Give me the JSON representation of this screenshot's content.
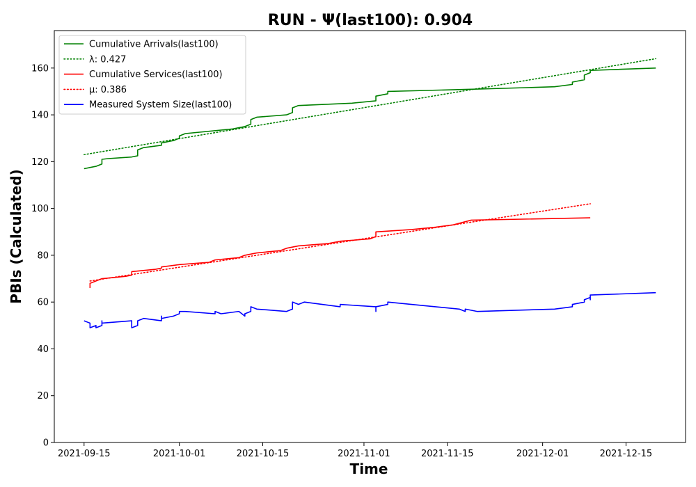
{
  "chart_data": {
    "type": "line",
    "title": "RUN -  Ψ(last100): 0.904",
    "xlabel": "Time",
    "ylabel": "PBIs (Calculated)",
    "xlim": [
      "2021-09-10",
      "2021-12-25"
    ],
    "ylim": [
      0,
      176
    ],
    "x_ticks": [
      "2021-09-15",
      "2021-10-01",
      "2021-10-15",
      "2021-11-01",
      "2021-11-15",
      "2021-12-01",
      "2021-12-15"
    ],
    "y_ticks": [
      0,
      20,
      40,
      60,
      80,
      100,
      120,
      140,
      160
    ],
    "grid": false,
    "legend_position": "top-left",
    "series": [
      {
        "name": "Cumulative Arrivals(last100)",
        "color": "#008000",
        "style": "solid",
        "points": [
          [
            "2021-09-15",
            117
          ],
          [
            "2021-09-17",
            118
          ],
          [
            "2021-09-18",
            119
          ],
          [
            "2021-09-18",
            121
          ],
          [
            "2021-09-19",
            121.3
          ],
          [
            "2021-09-23",
            122
          ],
          [
            "2021-09-24",
            122.5
          ],
          [
            "2021-09-24",
            125
          ],
          [
            "2021-09-25",
            126
          ],
          [
            "2021-09-28",
            127
          ],
          [
            "2021-09-28",
            128
          ],
          [
            "2021-09-30",
            129
          ],
          [
            "2021-10-01",
            130
          ],
          [
            "2021-10-01",
            131
          ],
          [
            "2021-10-02",
            132
          ],
          [
            "2021-10-10",
            134
          ],
          [
            "2021-10-11",
            134.5
          ],
          [
            "2021-10-12",
            135
          ],
          [
            "2021-10-13",
            136
          ],
          [
            "2021-10-13",
            138
          ],
          [
            "2021-10-14",
            139
          ],
          [
            "2021-10-19",
            140
          ],
          [
            "2021-10-20",
            141
          ],
          [
            "2021-10-20",
            143
          ],
          [
            "2021-10-21",
            144
          ],
          [
            "2021-10-30",
            145
          ],
          [
            "2021-11-03",
            146
          ],
          [
            "2021-11-03",
            148
          ],
          [
            "2021-11-05",
            149
          ],
          [
            "2021-11-05",
            150
          ],
          [
            "2021-11-20",
            151
          ],
          [
            "2021-12-03",
            152
          ],
          [
            "2021-12-06",
            153
          ],
          [
            "2021-12-06",
            154
          ],
          [
            "2021-12-08",
            155
          ],
          [
            "2021-12-08",
            157
          ],
          [
            "2021-12-09",
            158
          ],
          [
            "2021-12-09",
            159
          ],
          [
            "2021-12-20",
            160
          ]
        ]
      },
      {
        "name": "λ: 0.427",
        "color": "#008000",
        "style": "dotted",
        "points": [
          [
            "2021-09-15",
            123
          ],
          [
            "2021-12-20",
            164
          ]
        ]
      },
      {
        "name": "Cumulative Services(last100)",
        "color": "#ff0000",
        "style": "solid",
        "points": [
          [
            "2021-09-16",
            66
          ],
          [
            "2021-09-16",
            68
          ],
          [
            "2021-09-17",
            69
          ],
          [
            "2021-09-18",
            70
          ],
          [
            "2021-09-22",
            71
          ],
          [
            "2021-09-23",
            71.5
          ],
          [
            "2021-09-23",
            73
          ],
          [
            "2021-09-27",
            74
          ],
          [
            "2021-09-28",
            74.5
          ],
          [
            "2021-09-28",
            75
          ],
          [
            "2021-10-01",
            76
          ],
          [
            "2021-10-06",
            77
          ],
          [
            "2021-10-07",
            78
          ],
          [
            "2021-10-11",
            79
          ],
          [
            "2021-10-12",
            80
          ],
          [
            "2021-10-14",
            81
          ],
          [
            "2021-10-18",
            82
          ],
          [
            "2021-10-19",
            83
          ],
          [
            "2021-10-21",
            84
          ],
          [
            "2021-10-26",
            85
          ],
          [
            "2021-10-28",
            86
          ],
          [
            "2021-11-02",
            87
          ],
          [
            "2021-11-03",
            88
          ],
          [
            "2021-11-03",
            90
          ],
          [
            "2021-11-09",
            91
          ],
          [
            "2021-11-13",
            92
          ],
          [
            "2021-11-16",
            93
          ],
          [
            "2021-11-19",
            95
          ],
          [
            "2021-12-09",
            96
          ]
        ]
      },
      {
        "name": "μ: 0.386",
        "color": "#ff0000",
        "style": "dotted",
        "points": [
          [
            "2021-09-16",
            69
          ],
          [
            "2021-12-09",
            102
          ]
        ]
      },
      {
        "name": "Measured System Size(last100)",
        "color": "#0000ff",
        "style": "solid",
        "points": [
          [
            "2021-09-15",
            52
          ],
          [
            "2021-09-16",
            51
          ],
          [
            "2021-09-16",
            49
          ],
          [
            "2021-09-17",
            50
          ],
          [
            "2021-09-17",
            49
          ],
          [
            "2021-09-18",
            50
          ],
          [
            "2021-09-18",
            52
          ],
          [
            "2021-09-18",
            51
          ],
          [
            "2021-09-23",
            52
          ],
          [
            "2021-09-23",
            49
          ],
          [
            "2021-09-24",
            50
          ],
          [
            "2021-09-24",
            52
          ],
          [
            "2021-09-25",
            53
          ],
          [
            "2021-09-28",
            52
          ],
          [
            "2021-09-28",
            54
          ],
          [
            "2021-09-28",
            53
          ],
          [
            "2021-09-30",
            54
          ],
          [
            "2021-10-01",
            55
          ],
          [
            "2021-10-01",
            56
          ],
          [
            "2021-10-02",
            56
          ],
          [
            "2021-10-07",
            55
          ],
          [
            "2021-10-07",
            56
          ],
          [
            "2021-10-08",
            55
          ],
          [
            "2021-10-11",
            56
          ],
          [
            "2021-10-12",
            54
          ],
          [
            "2021-10-12",
            55
          ],
          [
            "2021-10-13",
            56
          ],
          [
            "2021-10-13",
            58
          ],
          [
            "2021-10-14",
            57
          ],
          [
            "2021-10-19",
            56
          ],
          [
            "2021-10-20",
            57
          ],
          [
            "2021-10-20",
            60
          ],
          [
            "2021-10-21",
            59
          ],
          [
            "2021-10-22",
            60
          ],
          [
            "2021-10-28",
            58
          ],
          [
            "2021-10-28",
            59
          ],
          [
            "2021-11-03",
            58
          ],
          [
            "2021-11-03",
            56
          ],
          [
            "2021-11-03",
            58
          ],
          [
            "2021-11-05",
            59
          ],
          [
            "2021-11-05",
            60
          ],
          [
            "2021-11-09",
            59
          ],
          [
            "2021-11-13",
            58
          ],
          [
            "2021-11-17",
            57
          ],
          [
            "2021-11-18",
            56
          ],
          [
            "2021-11-18",
            57
          ],
          [
            "2021-11-20",
            56
          ],
          [
            "2021-12-03",
            57
          ],
          [
            "2021-12-06",
            58
          ],
          [
            "2021-12-06",
            59
          ],
          [
            "2021-12-08",
            60
          ],
          [
            "2021-12-08",
            61
          ],
          [
            "2021-12-09",
            62
          ],
          [
            "2021-12-09",
            61
          ],
          [
            "2021-12-09",
            63
          ],
          [
            "2021-12-20",
            64
          ]
        ]
      }
    ]
  }
}
